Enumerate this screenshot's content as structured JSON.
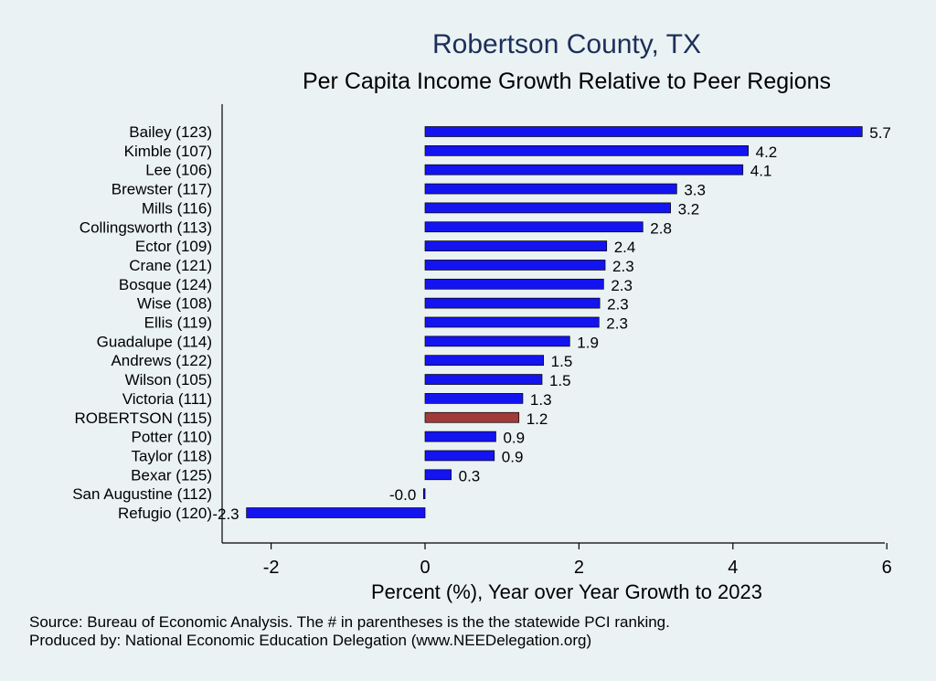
{
  "chart_data": {
    "type": "bar",
    "orientation": "horizontal",
    "title": "Robertson County, TX",
    "subtitle": "Per Capita Income Growth Relative to Peer Regions",
    "xlabel": "Percent (%), Year over Year Growth to 2023",
    "xlim": [
      -2.6,
      6
    ],
    "xticks": [
      -2,
      0,
      2,
      4,
      6
    ],
    "categories": [
      "Bailey (123)",
      "Kimble (107)",
      "Lee (106)",
      "Brewster (117)",
      "Mills (116)",
      "Collingsworth (113)",
      "Ector (109)",
      "Crane (121)",
      "Bosque (124)",
      "Wise (108)",
      "Ellis (119)",
      "Guadalupe (114)",
      "Andrews (122)",
      "Wilson (105)",
      "Victoria (111)",
      "ROBERTSON (115)",
      "Potter (110)",
      "Taylor (118)",
      "Bexar (125)",
      "San Augustine (112)",
      "Refugio (120)"
    ],
    "values": [
      5.68,
      4.2,
      4.13,
      3.27,
      3.19,
      2.83,
      2.36,
      2.34,
      2.32,
      2.27,
      2.26,
      1.88,
      1.54,
      1.52,
      1.27,
      1.22,
      0.92,
      0.9,
      0.34,
      -0.02,
      -2.32
    ],
    "value_labels": [
      "5.7",
      "4.2",
      "4.1",
      "3.3",
      "3.2",
      "2.8",
      "2.4",
      "2.3",
      "2.3",
      "2.3",
      "2.3",
      "1.9",
      "1.5",
      "1.5",
      "1.3",
      "1.2",
      "0.9",
      "0.9",
      "0.3",
      "-0.0",
      "-2.3"
    ],
    "highlight": "ROBERTSON (115)",
    "colors": {
      "bar": "#1414f0",
      "highlight": "#a33a3a",
      "axis": "#000000",
      "title": "#1b2f5a"
    }
  },
  "footer": {
    "source": "Source: Bureau of Economic Analysis. The # in parentheses is the the statewide PCI ranking.",
    "produced": "Produced by: National Economic Education Delegation (www.NEEDelegation.org)"
  }
}
